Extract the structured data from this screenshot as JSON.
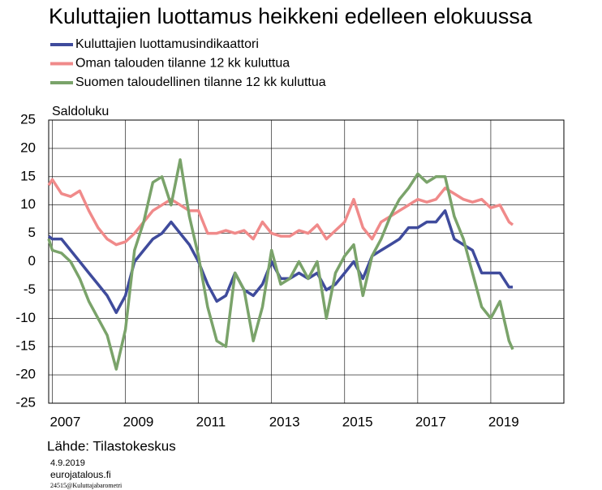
{
  "chart_data": {
    "type": "line",
    "title": "Kuluttajien luottamus heikkeni edelleen elokuussa",
    "y_label": "Saldoluku",
    "source": "Lähde: Tilastokeskus",
    "date": "4.9.2019",
    "site": "eurojatalous.fi",
    "code": "24515@Kuluttajabarometri",
    "x": [
      2006.9,
      2007,
      2007.25,
      2007.5,
      2007.75,
      2008,
      2008.25,
      2008.5,
      2008.75,
      2009,
      2009.25,
      2009.5,
      2009.75,
      2010,
      2010.25,
      2010.5,
      2010.75,
      2011,
      2011.25,
      2011.5,
      2011.75,
      2012,
      2012.25,
      2012.5,
      2012.75,
      2013,
      2013.25,
      2013.5,
      2013.75,
      2014,
      2014.25,
      2014.5,
      2014.75,
      2015,
      2015.25,
      2015.5,
      2015.75,
      2016,
      2016.25,
      2016.5,
      2016.75,
      2017,
      2017.25,
      2017.5,
      2017.75,
      2018,
      2018.25,
      2018.5,
      2018.75,
      2019,
      2019.25,
      2019.5,
      2019.6
    ],
    "series": [
      {
        "name": "Kuluttajien luottamusindikaattori",
        "color": "#3f4b9c",
        "values": [
          4.5,
          4,
          4,
          2,
          0,
          -2,
          -4,
          -6,
          -9,
          -6,
          0,
          2,
          4,
          5,
          7,
          5,
          3,
          0,
          -4,
          -7,
          -6,
          -2,
          -5,
          -6,
          -4,
          0,
          -3,
          -3,
          -2,
          -3,
          -2,
          -5,
          -4,
          -2,
          0,
          -3,
          1,
          2,
          3,
          4,
          6,
          6,
          7,
          7,
          9,
          4,
          3,
          2,
          -2,
          -2,
          -2,
          -4.5,
          -4.5
        ]
      },
      {
        "name": "Oman talouden tilanne 12 kk kuluttua",
        "color": "#f08a8a",
        "values": [
          13.5,
          14.5,
          12,
          11.5,
          12.5,
          9,
          6,
          4,
          3,
          3.5,
          5,
          7,
          9,
          10,
          11,
          10,
          9,
          9,
          5,
          5,
          5.5,
          5,
          5.5,
          4,
          7,
          5,
          4.5,
          4.5,
          5.5,
          5,
          6.5,
          4,
          5.5,
          7,
          11,
          6,
          4,
          7,
          8,
          9,
          10,
          11,
          10.5,
          11,
          13,
          12,
          11,
          10.5,
          11,
          9.5,
          10,
          7,
          6.5
        ]
      },
      {
        "name": "Suomen taloudellinen tilanne 12 kk kuluttua",
        "color": "#7aa36a",
        "values": [
          4,
          2,
          1.5,
          0,
          -3,
          -7,
          -10,
          -13,
          -19,
          -12,
          2,
          7,
          14,
          15,
          10,
          18,
          8,
          1,
          -8,
          -14,
          -15,
          -2,
          -5,
          -14,
          -8,
          2,
          -4,
          -3,
          0,
          -3,
          0,
          -10,
          -2,
          1,
          3,
          -6,
          1,
          4,
          8,
          11,
          13,
          15.5,
          14,
          15,
          15,
          8,
          4,
          -2,
          -8,
          -10,
          -7,
          -14,
          -15.5
        ]
      }
    ],
    "xlim": [
      2006.9,
      2021
    ],
    "xticks": [
      2007,
      2009,
      2011,
      2013,
      2015,
      2017,
      2019
    ],
    "ylim": [
      -25,
      25
    ],
    "yticks": [
      -25,
      -20,
      -15,
      -10,
      -5,
      0,
      5,
      10,
      15,
      20,
      25
    ],
    "grid": true
  }
}
